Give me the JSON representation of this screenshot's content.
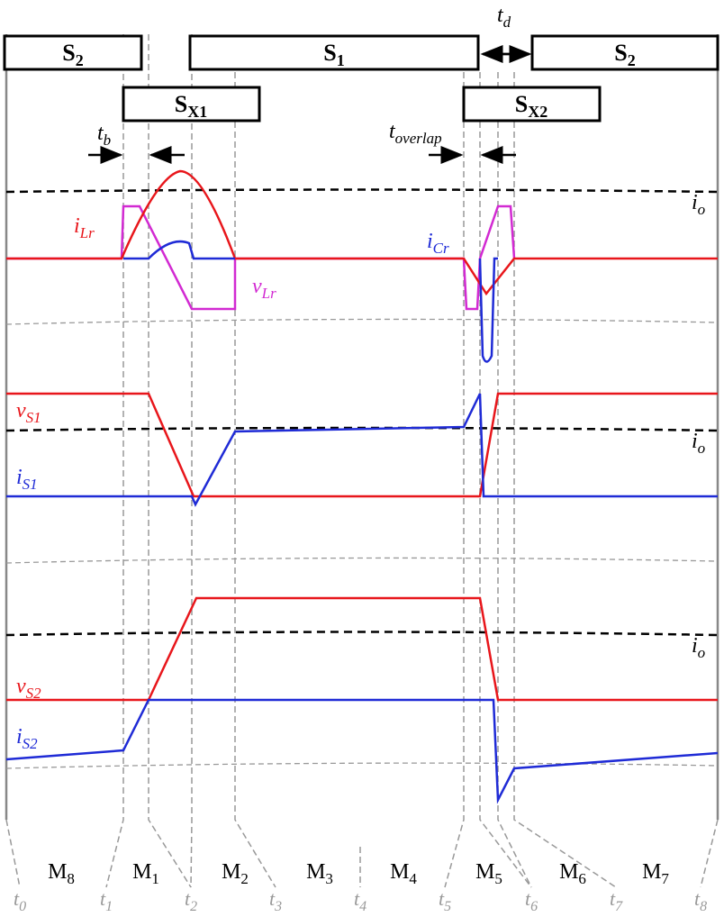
{
  "switches": [
    {
      "main": "S",
      "sub": "2"
    },
    {
      "main": "S",
      "sub": "1"
    },
    {
      "main": "S",
      "sub": "2"
    },
    {
      "main": "S",
      "sub": "X1"
    },
    {
      "main": "S",
      "sub": "X2"
    }
  ],
  "intervals": {
    "tb": {
      "main": "t",
      "sub": "b"
    },
    "toverlap": {
      "main": "t",
      "sub": "overlap"
    },
    "td": {
      "main": "t",
      "sub": "d"
    }
  },
  "signals": {
    "iLr": {
      "main": "i",
      "sub": "Lr"
    },
    "iCr": {
      "main": "i",
      "sub": "Cr"
    },
    "vLr": {
      "main": "v",
      "sub": "Lr"
    },
    "io": [
      {
        "main": "i",
        "sub": "o"
      },
      {
        "main": "i",
        "sub": "o"
      },
      {
        "main": "i",
        "sub": "o"
      }
    ],
    "vS1": {
      "main": "v",
      "sub": "S1"
    },
    "iS1": {
      "main": "i",
      "sub": "S1"
    },
    "vS2": {
      "main": "v",
      "sub": "S2"
    },
    "iS2": {
      "main": "i",
      "sub": "S2"
    }
  },
  "modes": [
    {
      "main": "M",
      "sub": "8"
    },
    {
      "main": "M",
      "sub": "1"
    },
    {
      "main": "M",
      "sub": "2"
    },
    {
      "main": "M",
      "sub": "3"
    },
    {
      "main": "M",
      "sub": "4"
    },
    {
      "main": "M",
      "sub": "5"
    },
    {
      "main": "M",
      "sub": "6"
    },
    {
      "main": "M",
      "sub": "7"
    }
  ],
  "times": [
    {
      "main": "t",
      "sub": "0"
    },
    {
      "main": "t",
      "sub": "1"
    },
    {
      "main": "t",
      "sub": "2"
    },
    {
      "main": "t",
      "sub": "3"
    },
    {
      "main": "t",
      "sub": "4"
    },
    {
      "main": "t",
      "sub": "5"
    },
    {
      "main": "t",
      "sub": "6"
    },
    {
      "main": "t",
      "sub": "7"
    },
    {
      "main": "t",
      "sub": "8"
    }
  ]
}
